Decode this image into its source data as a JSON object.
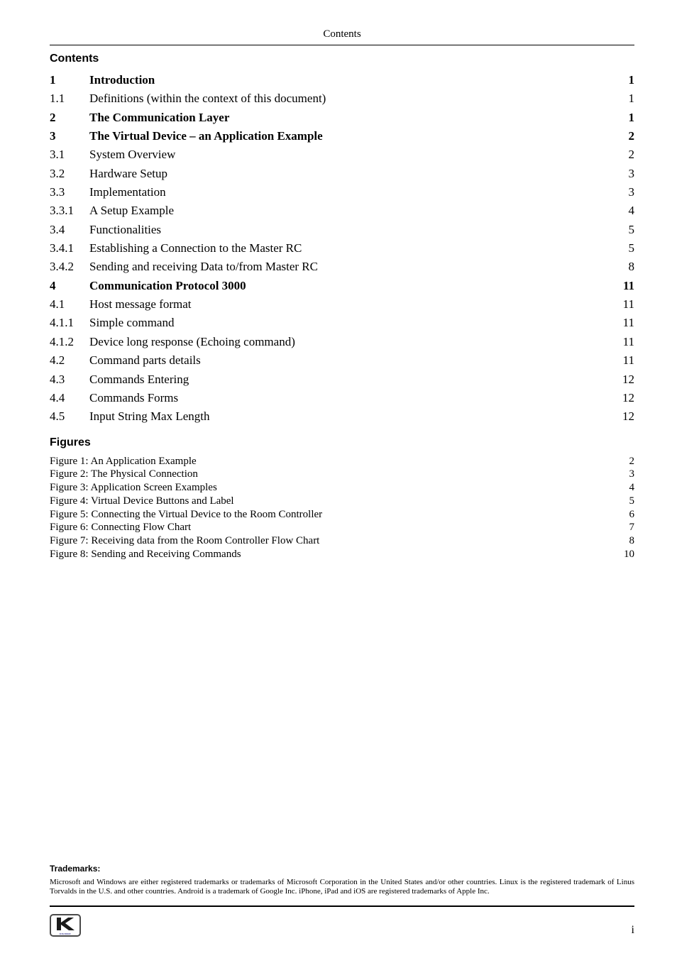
{
  "header": {
    "running_title": "Contents"
  },
  "sections": {
    "contents_title": "Contents",
    "figures_title": "Figures"
  },
  "toc": {
    "entries": [
      {
        "num": "1",
        "text": "Introduction",
        "page": "1",
        "bold": true
      },
      {
        "num": "1.1",
        "text": "Definitions (within the context of this document)",
        "page": "1",
        "bold": false
      },
      {
        "num": "2",
        "text": "The Communication Layer",
        "page": "1",
        "bold": true
      },
      {
        "num": "3",
        "text": "The Virtual Device – an Application Example",
        "page": "2",
        "bold": true
      },
      {
        "num": "3.1",
        "text": "System Overview",
        "page": "2",
        "bold": false
      },
      {
        "num": "3.2",
        "text": "Hardware Setup",
        "page": "3",
        "bold": false
      },
      {
        "num": "3.3",
        "text": "Implementation",
        "page": "3",
        "bold": false
      },
      {
        "num": "3.3.1",
        "text": "A Setup Example",
        "page": "4",
        "bold": false
      },
      {
        "num": "3.4",
        "text": "Functionalities",
        "page": "5",
        "bold": false
      },
      {
        "num": "3.4.1",
        "text": "Establishing a Connection to the Master RC",
        "page": "5",
        "bold": false
      },
      {
        "num": "3.4.2",
        "text": "Sending and receiving Data to/from Master RC",
        "page": "8",
        "bold": false
      },
      {
        "num": "4",
        "text": "Communication Protocol 3000",
        "page": "11",
        "bold": true
      },
      {
        "num": "4.1",
        "text": "Host message format",
        "page": "11",
        "bold": false
      },
      {
        "num": "4.1.1",
        "text": "Simple command",
        "page": "11",
        "bold": false
      },
      {
        "num": "4.1.2",
        "text": "Device long response (Echoing command)",
        "page": "11",
        "bold": false
      },
      {
        "num": "4.2",
        "text": "Command parts details",
        "page": "11",
        "bold": false
      },
      {
        "num": "4.3",
        "text": "Commands Entering",
        "page": "12",
        "bold": false
      },
      {
        "num": "4.4",
        "text": "Commands Forms",
        "page": "12",
        "bold": false
      },
      {
        "num": "4.5",
        "text": "Input String Max Length",
        "page": "12",
        "bold": false
      }
    ]
  },
  "figures": {
    "entries": [
      {
        "text": "Figure 1: An Application Example",
        "page": "2"
      },
      {
        "text": "Figure 2: The Physical Connection",
        "page": "3"
      },
      {
        "text": "Figure 3: Application Screen Examples",
        "page": "4"
      },
      {
        "text": "Figure 4: Virtual Device Buttons and Label",
        "page": "5"
      },
      {
        "text": "Figure 5: Connecting the Virtual Device to the Room Controller",
        "page": "6"
      },
      {
        "text": "Figure 6: Connecting Flow Chart",
        "page": "7"
      },
      {
        "text": "Figure 7: Receiving data from the Room Controller Flow Chart",
        "page": "8"
      },
      {
        "text": "Figure 8: Sending and Receiving Commands",
        "page": "10"
      }
    ]
  },
  "trademarks": {
    "title": "Trademarks:",
    "body": "Microsoft and Windows are either registered trademarks or trademarks of Microsoft Corporation in the United States and/or other countries. Linux is the registered trademark of Linus Torvalds in the U.S. and other countries. Android is a trademark of Google Inc. iPhone, iPad and iOS are registered trademarks of Apple Inc."
  },
  "footer": {
    "page_number": "i",
    "logo_sub": "KRAMER"
  },
  "style": {
    "page_bg": "#ffffff",
    "text_color": "#000000",
    "body_font": "Times New Roman",
    "heading_font": "Arial",
    "rule_color": "#000000",
    "logo_border": "#4a4a4a",
    "logo_blue": "#2a2a8a"
  }
}
